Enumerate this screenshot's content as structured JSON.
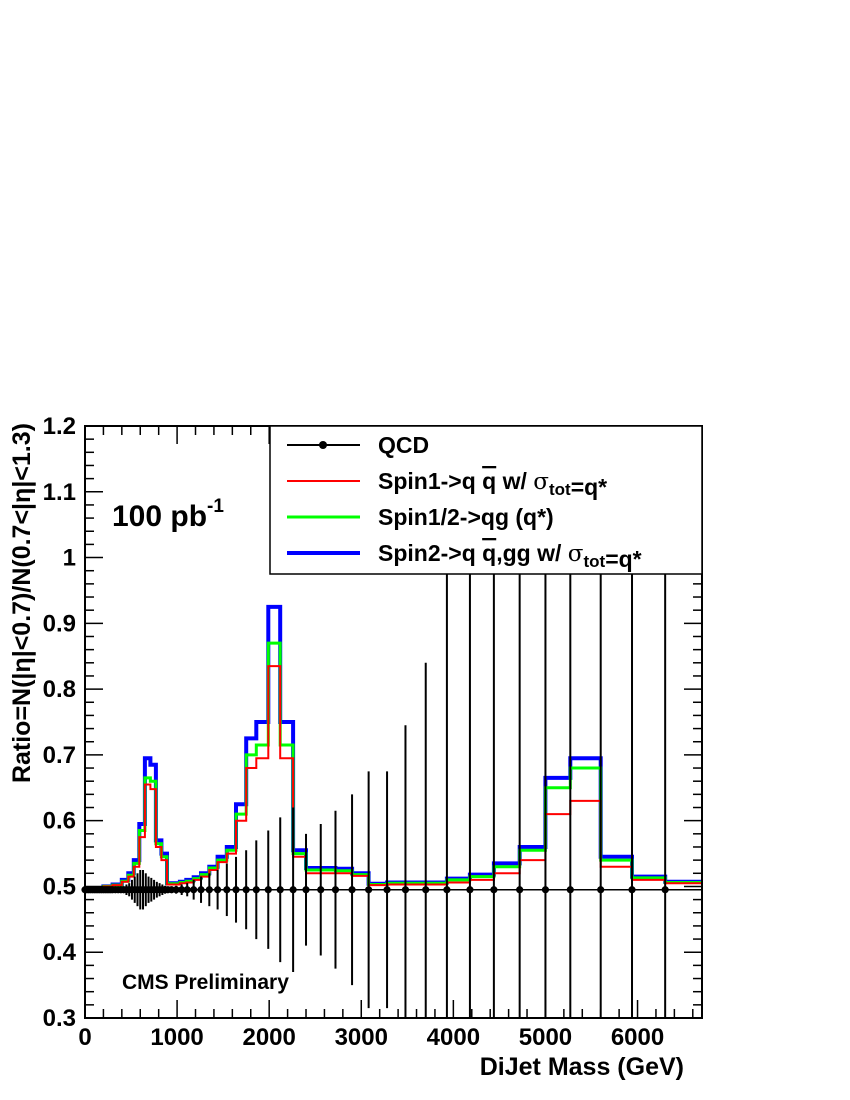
{
  "chart_data": {
    "type": "line",
    "xlabel": "DiJet Mass (GeV)",
    "ylabel": "Ratio=N(|η|<0.7)/N(0.7<|η|<1.3)",
    "xlim": [
      0,
      6700
    ],
    "ylim": [
      0.3,
      1.2
    ],
    "x_ticks": [
      0,
      1000,
      2000,
      3000,
      4000,
      5000,
      6000
    ],
    "x_tick_labels": [
      "0",
      "1000",
      "2000",
      "3000",
      "4000",
      "5000",
      "6000"
    ],
    "y_ticks": [
      0.3,
      0.4,
      0.5,
      0.6,
      0.7,
      0.8,
      0.9,
      1.0,
      1.1,
      1.2
    ],
    "y_tick_labels": [
      "0.3",
      "0.4",
      "0.5",
      "0.6",
      "0.7",
      "0.8",
      "0.9",
      "1",
      "1.1",
      "1.2"
    ],
    "grid": false,
    "legend_position": "top-right",
    "annotations": {
      "lumi_main": "100 pb",
      "lumi_sup": "-1",
      "preliminary": "CMS Preliminary"
    },
    "legend": [
      {
        "key": "qcd",
        "parts": [
          {
            "t": "QCD"
          }
        ]
      },
      {
        "key": "spin1",
        "parts": [
          {
            "t": "Spin1->q "
          },
          {
            "t": "q",
            "over": true
          },
          {
            "t": " w/ "
          },
          {
            "t": "σ",
            "serif": true
          },
          {
            "t": "tot",
            "sub": true
          },
          {
            "t": "=q*"
          }
        ]
      },
      {
        "key": "spin12",
        "parts": [
          {
            "t": "Spin1/2->qg (q*)"
          }
        ]
      },
      {
        "key": "spin2",
        "parts": [
          {
            "t": "Spin2->q "
          },
          {
            "t": "q",
            "over": true
          },
          {
            "t": ",gg w/ "
          },
          {
            "t": "σ",
            "serif": true
          },
          {
            "t": "tot",
            "sub": true
          },
          {
            "t": "=q*"
          }
        ]
      }
    ],
    "bin_edges": [
      0,
      100,
      200,
      300,
      400,
      470,
      530,
      590,
      650,
      710,
      770,
      830,
      890,
      960,
      1030,
      1100,
      1180,
      1260,
      1350,
      1440,
      1540,
      1640,
      1750,
      1860,
      1990,
      2120,
      2260,
      2400,
      2560,
      2720,
      2900,
      3080,
      3280,
      3480,
      3700,
      3930,
      4180,
      4440,
      4720,
      5000,
      5270,
      5600,
      5940,
      6300,
      6700
    ],
    "series": [
      {
        "name": "QCD",
        "key": "qcd",
        "color": "#000000",
        "x": [
          0,
          20,
          40,
          60,
          80,
          100,
          120,
          140,
          160,
          180,
          200,
          220,
          240,
          260,
          280,
          300,
          330,
          360,
          390,
          420,
          450,
          480,
          510,
          540,
          570,
          600,
          630,
          660,
          690,
          720,
          750,
          780,
          810,
          840,
          870,
          900,
          940,
          990,
          1050,
          1110,
          1180,
          1260,
          1350,
          1440,
          1540,
          1640,
          1750,
          1860,
          1990,
          2120,
          2260,
          2400,
          2560,
          2720,
          2900,
          3080,
          3280,
          3480,
          3700,
          3930,
          4180,
          4440,
          4720,
          5000,
          5270,
          5600,
          5940,
          6300
        ],
        "y": [
          0.495,
          0.495,
          0.495,
          0.495,
          0.495,
          0.495,
          0.495,
          0.495,
          0.495,
          0.495,
          0.495,
          0.495,
          0.495,
          0.495,
          0.495,
          0.495,
          0.495,
          0.495,
          0.495,
          0.495,
          0.495,
          0.495,
          0.495,
          0.495,
          0.495,
          0.495,
          0.495,
          0.495,
          0.495,
          0.495,
          0.495,
          0.495,
          0.495,
          0.495,
          0.495,
          0.495,
          0.495,
          0.495,
          0.495,
          0.495,
          0.495,
          0.495,
          0.495,
          0.495,
          0.495,
          0.495,
          0.495,
          0.495,
          0.495,
          0.495,
          0.495,
          0.495,
          0.495,
          0.495,
          0.495,
          0.495,
          0.495,
          0.495,
          0.495,
          0.495,
          0.495,
          0.495,
          0.495,
          0.495,
          0.495,
          0.495,
          0.495,
          0.495
        ],
        "yerr": [
          0,
          0,
          0,
          0,
          0,
          0,
          0,
          0,
          0,
          0,
          0,
          0,
          0,
          0,
          0,
          0,
          0,
          0,
          0.005,
          0.005,
          0.008,
          0.01,
          0.015,
          0.02,
          0.025,
          0.03,
          0.03,
          0.025,
          0.02,
          0.018,
          0.015,
          0.012,
          0.01,
          0.008,
          0.006,
          0.005,
          0.005,
          0.006,
          0.008,
          0.01,
          0.015,
          0.02,
          0.025,
          0.03,
          0.04,
          0.05,
          0.06,
          0.075,
          0.09,
          0.11,
          0.125,
          0.085,
          0.1,
          0.12,
          0.145,
          0.18,
          0.18,
          0.25,
          0.345,
          0.6,
          0.9,
          0.9,
          0.9,
          0.9,
          0.9,
          0.9,
          0.9,
          0.9
        ]
      },
      {
        "name": "Spin1->q q w/ σtot=q*",
        "key": "spin1",
        "color": "#ff0000",
        "y": [
          0.495,
          0.497,
          0.5,
          0.502,
          0.507,
          0.515,
          0.53,
          0.575,
          0.655,
          0.648,
          0.56,
          0.54,
          0.503,
          0.503,
          0.505,
          0.506,
          0.51,
          0.515,
          0.525,
          0.537,
          0.55,
          0.6,
          0.68,
          0.695,
          0.835,
          0.695,
          0.545,
          0.52,
          0.52,
          0.52,
          0.516,
          0.502,
          0.503,
          0.503,
          0.503,
          0.506,
          0.51,
          0.52,
          0.54,
          0.61,
          0.63,
          0.53,
          0.51,
          0.505,
          0.505
        ]
      },
      {
        "name": "Spin1/2->qg (q*)",
        "key": "spin12",
        "color": "#00ff00",
        "y": [
          0.495,
          0.497,
          0.5,
          0.502,
          0.508,
          0.517,
          0.535,
          0.585,
          0.665,
          0.66,
          0.565,
          0.545,
          0.504,
          0.504,
          0.506,
          0.508,
          0.512,
          0.518,
          0.528,
          0.54,
          0.555,
          0.61,
          0.7,
          0.715,
          0.87,
          0.715,
          0.55,
          0.525,
          0.525,
          0.524,
          0.518,
          0.503,
          0.505,
          0.505,
          0.505,
          0.51,
          0.515,
          0.53,
          0.555,
          0.65,
          0.68,
          0.54,
          0.513,
          0.506,
          0.506
        ]
      },
      {
        "name": "Spin2->q q,gg w/ σtot=q*",
        "key": "spin2",
        "color": "#0000ff",
        "y": [
          0.495,
          0.497,
          0.5,
          0.503,
          0.51,
          0.52,
          0.54,
          0.595,
          0.695,
          0.685,
          0.57,
          0.55,
          0.505,
          0.505,
          0.507,
          0.51,
          0.514,
          0.52,
          0.53,
          0.545,
          0.56,
          0.625,
          0.725,
          0.75,
          0.925,
          0.75,
          0.555,
          0.528,
          0.528,
          0.527,
          0.52,
          0.504,
          0.506,
          0.506,
          0.506,
          0.512,
          0.518,
          0.535,
          0.56,
          0.665,
          0.695,
          0.545,
          0.515,
          0.507,
          0.507
        ]
      }
    ]
  }
}
